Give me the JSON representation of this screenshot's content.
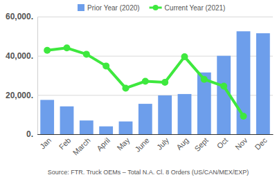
{
  "chart_data": {
    "type": "bar",
    "categories": [
      "Jan",
      "Feb",
      "March",
      "April",
      "May",
      "June",
      "July",
      "Aug",
      "Sept",
      "Oct",
      "Nov",
      "Dec"
    ],
    "series": [
      {
        "name": "Prior Year (2020)",
        "type": "bar",
        "color": "#6d9eeb",
        "values": [
          17500,
          14200,
          7000,
          4000,
          6500,
          15500,
          19800,
          20500,
          31500,
          40000,
          52500,
          51500
        ]
      },
      {
        "name": "Current Year (2021)",
        "type": "line",
        "color": "#3ee83e",
        "marker": "circle",
        "values": [
          42800,
          44000,
          40800,
          34800,
          23500,
          27000,
          26500,
          39500,
          28000,
          24500,
          9200,
          null
        ]
      }
    ],
    "ylim": [
      0,
      60000
    ],
    "yticks": [
      {
        "value": 0,
        "label": "0."
      },
      {
        "value": 20000,
        "label": "20,000."
      },
      {
        "value": 40000,
        "label": "40,000."
      },
      {
        "value": 60000,
        "label": "60,000."
      }
    ],
    "grid": true,
    "legend": "top",
    "annotations": [
      "Source: FTR. Truck OEMs – Total N.A. Cl. 8 Orders (US/CAN/MEX/EXP)"
    ]
  }
}
